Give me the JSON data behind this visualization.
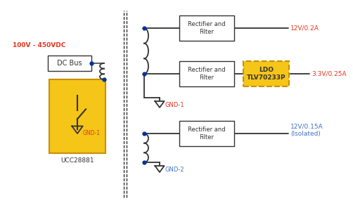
{
  "voltage_label": "100V - 450VDC",
  "dc_bus_label": "DC Bus",
  "ucc_label": "UCC28881",
  "gnd1_label_left": "GND-1",
  "gnd1_label_mid": "GND-1",
  "gnd2_label": "GND-2",
  "ldo_label": "LDO\nTLV70233P",
  "rf1_label": "Rectifier and\nFilter",
  "rf2_label": "Rectifier and\nFilter",
  "rf3_label": "Rectifier and\nFilter",
  "out1_label": "12V/0.2A",
  "out2_label": "3.3V/0.25A",
  "out3_label": "12V/0.15A\n(Isolated)",
  "red": "#e8341c",
  "blue": "#4472c4",
  "black": "#333333",
  "dot_color": "#003399",
  "gold_fc": "#f5c518",
  "gold_ec": "#c8900a",
  "ldo_fc": "#f5c518",
  "ldo_ec": "#c8900a"
}
